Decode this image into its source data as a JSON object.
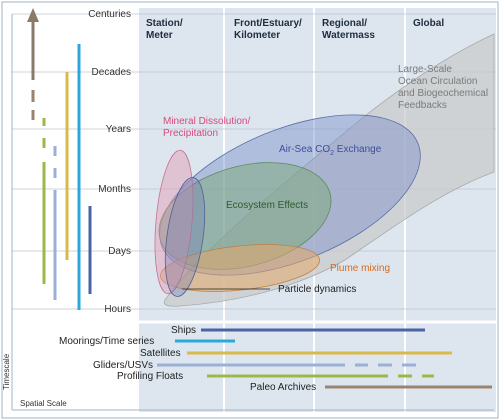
{
  "columns": {
    "station": [
      "Station/",
      "Meter"
    ],
    "front": [
      "Front/Estuary/",
      "Kilometer"
    ],
    "regional": [
      "Regional/",
      "Watermass"
    ],
    "global": "Global"
  },
  "timescales": [
    "Centuries",
    "Decades",
    "Years",
    "Months",
    "Days",
    "Hours"
  ],
  "processes": {
    "large_scale": [
      "Large-Scale",
      "Ocean Circulation",
      "and Biogeochemical",
      "Feedbacks"
    ],
    "mineral": [
      "Mineral Dissolution/",
      "Precipitation"
    ],
    "co2_main": "Air-Sea CO",
    "co2_sub": "2",
    "co2_tail": " Exchange",
    "ecosystem": "Ecosystem Effects",
    "plume": "Plume mixing",
    "particle": "Particle dynamics"
  },
  "sensors": {
    "ships": "Ships",
    "moorings": "Moorings/Time series",
    "satellites": "Satellites",
    "gliders": "Gliders/USVs",
    "floats": "Profiling Floats",
    "paleo": "Paleo Archives"
  },
  "axes": {
    "y": "Timescale",
    "x": "Spatial Scale"
  },
  "colors": {
    "panel": "#dde6ef",
    "grid": "#ffffff",
    "large_scale": "#c9c9c9",
    "co2": "#7a8fc9",
    "mineral": "#e59ab2",
    "ecosystem": "#7faa7f",
    "plume": "#e3a76a",
    "ships": "#4a63a6",
    "moorings": "#2aa8de",
    "satellites": "#d9b94a",
    "gliders": "#9ab0d4",
    "floats": "#9bb94a",
    "paleo": "#9a8470",
    "axis_arrow": "#8a7a6a"
  }
}
